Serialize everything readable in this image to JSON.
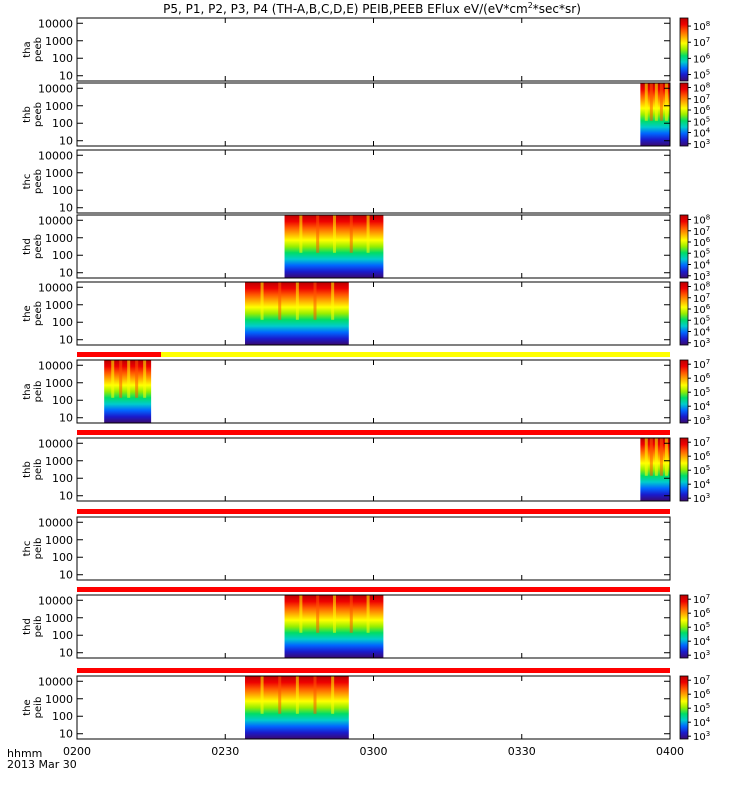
{
  "chart_data": {
    "type": "heatmap",
    "title_parts": {
      "main": "P5, P1, P2, P3, P4 (TH-A,B,C,D,E) PEIB,PEEB EFlux eV/(eV*cm",
      "sup": "2",
      "tail": "*sec*sr)"
    },
    "x_time_label": "hhmm",
    "x_date_label": "2013 Mar 30",
    "x_ticks": [
      "0200",
      "0230",
      "0300",
      "0330",
      "0400"
    ],
    "x_range_minutes": [
      0,
      120
    ],
    "y_scale": "log",
    "y_range_eV": [
      5,
      20000
    ],
    "y_ticks": [
      {
        "value": 10000,
        "label": "10000"
      },
      {
        "value": 1000,
        "label": "1000"
      },
      {
        "value": 100,
        "label": "100"
      },
      {
        "value": 10,
        "label": "10"
      }
    ],
    "colorscale": [
      "#3b0a6e",
      "#1a1acc",
      "#0066ff",
      "#00cccc",
      "#00dd66",
      "#99ee00",
      "#ffff00",
      "#ffaa00",
      "#ff5500",
      "#ee0000",
      "#bb0000"
    ],
    "bar_colors": {
      "red": "#ff0000",
      "yellow": "#ffff00"
    },
    "panels": [
      {
        "label1": "tha",
        "label2": "peeb",
        "has_bar": false,
        "present": [],
        "cbar": {
          "ticks": [
            {
              "b": "10",
              "e": "8"
            },
            {
              "b": "10",
              "e": "7"
            },
            {
              "b": "10",
              "e": "6"
            },
            {
              "b": "10",
              "e": "5"
            }
          ],
          "min_exp": 4.6,
          "max_exp": 8.5
        }
      },
      {
        "label1": "thb",
        "label2": "peeb",
        "has_bar": false,
        "present": [
          [
            114,
            120
          ]
        ],
        "cbar": {
          "ticks": [
            {
              "b": "10",
              "e": "8"
            },
            {
              "b": "10",
              "e": "7"
            },
            {
              "b": "10",
              "e": "6"
            },
            {
              "b": "10",
              "e": "5"
            },
            {
              "b": "10",
              "e": "4"
            },
            {
              "b": "10",
              "e": "3"
            }
          ],
          "min_exp": 2.8,
          "max_exp": 8.4
        }
      },
      {
        "label1": "thc",
        "label2": "peeb",
        "has_bar": false,
        "present": [],
        "cbar": null
      },
      {
        "label1": "thd",
        "label2": "peeb",
        "has_bar": false,
        "present": [
          [
            42,
            62
          ]
        ],
        "cbar": {
          "ticks": [
            {
              "b": "10",
              "e": "8"
            },
            {
              "b": "10",
              "e": "7"
            },
            {
              "b": "10",
              "e": "6"
            },
            {
              "b": "10",
              "e": "5"
            },
            {
              "b": "10",
              "e": "4"
            },
            {
              "b": "10",
              "e": "3"
            }
          ],
          "min_exp": 2.8,
          "max_exp": 8.4
        }
      },
      {
        "label1": "the",
        "label2": "peeb",
        "has_bar": false,
        "present": [
          [
            34,
            55
          ]
        ],
        "cbar": {
          "ticks": [
            {
              "b": "10",
              "e": "8"
            },
            {
              "b": "10",
              "e": "7"
            },
            {
              "b": "10",
              "e": "6"
            },
            {
              "b": "10",
              "e": "5"
            },
            {
              "b": "10",
              "e": "4"
            },
            {
              "b": "10",
              "e": "3"
            }
          ],
          "min_exp": 2.8,
          "max_exp": 8.4
        }
      },
      {
        "label1": "tha",
        "label2": "peib",
        "has_bar": true,
        "bar_segments": [
          [
            0,
            17,
            "red"
          ],
          [
            17,
            120,
            "yellow"
          ]
        ],
        "present": [
          [
            5.5,
            15
          ]
        ],
        "cbar": {
          "ticks": [
            {
              "b": "10",
              "e": "7"
            },
            {
              "b": "10",
              "e": "6"
            },
            {
              "b": "10",
              "e": "5"
            },
            {
              "b": "10",
              "e": "4"
            },
            {
              "b": "10",
              "e": "3"
            }
          ],
          "min_exp": 2.8,
          "max_exp": 7.3
        }
      },
      {
        "label1": "thb",
        "label2": "peib",
        "has_bar": true,
        "bar_segments": [
          [
            0,
            120,
            "red"
          ]
        ],
        "present": [
          [
            114,
            120
          ]
        ],
        "cbar": {
          "ticks": [
            {
              "b": "10",
              "e": "7"
            },
            {
              "b": "10",
              "e": "6"
            },
            {
              "b": "10",
              "e": "5"
            },
            {
              "b": "10",
              "e": "4"
            },
            {
              "b": "10",
              "e": "3"
            }
          ],
          "min_exp": 2.8,
          "max_exp": 7.3
        }
      },
      {
        "label1": "thc",
        "label2": "peib",
        "has_bar": true,
        "bar_segments": [
          [
            0,
            120,
            "red"
          ]
        ],
        "present": [],
        "cbar": null
      },
      {
        "label1": "thd",
        "label2": "peib",
        "has_bar": true,
        "bar_segments": [
          [
            0,
            120,
            "red"
          ]
        ],
        "present": [
          [
            42,
            62
          ]
        ],
        "cbar": {
          "ticks": [
            {
              "b": "10",
              "e": "7"
            },
            {
              "b": "10",
              "e": "6"
            },
            {
              "b": "10",
              "e": "5"
            },
            {
              "b": "10",
              "e": "4"
            },
            {
              "b": "10",
              "e": "3"
            }
          ],
          "min_exp": 2.8,
          "max_exp": 7.3
        }
      },
      {
        "label1": "the",
        "label2": "peib",
        "has_bar": true,
        "bar_segments": [
          [
            0,
            120,
            "red"
          ]
        ],
        "present": [
          [
            34,
            55
          ]
        ],
        "cbar": {
          "ticks": [
            {
              "b": "10",
              "e": "7"
            },
            {
              "b": "10",
              "e": "6"
            },
            {
              "b": "10",
              "e": "5"
            },
            {
              "b": "10",
              "e": "4"
            },
            {
              "b": "10",
              "e": "3"
            }
          ],
          "min_exp": 2.8,
          "max_exp": 7.3
        }
      }
    ]
  }
}
